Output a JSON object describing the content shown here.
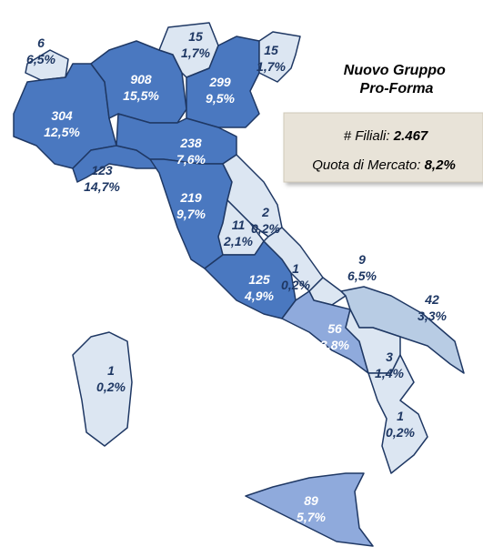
{
  "title": "Nuovo Gruppo Pro-Forma",
  "summary": {
    "branches_label": "# Filiali:",
    "branches_value": "2.467",
    "share_label": "Quota di Mercato:",
    "share_value": "8,2%"
  },
  "regions": [
    {
      "count": "6",
      "share": "6,5%"
    },
    {
      "count": "304",
      "share": "12,5%"
    },
    {
      "count": "908",
      "share": "15,5%"
    },
    {
      "count": "15",
      "share": "1,7%"
    },
    {
      "count": "299",
      "share": "9,5%"
    },
    {
      "count": "15",
      "share": "1,7%"
    },
    {
      "count": "123",
      "share": "14,7%"
    },
    {
      "count": "238",
      "share": "7,6%"
    },
    {
      "count": "219",
      "share": "9,7%"
    },
    {
      "count": "2",
      "share": "0,2%"
    },
    {
      "count": "11",
      "share": "2,1%"
    },
    {
      "count": "125",
      "share": "4,9%"
    },
    {
      "count": "1",
      "share": "0,2%"
    },
    {
      "count": "9",
      "share": "6,5%"
    },
    {
      "count": "56",
      "share": "3,8%"
    },
    {
      "count": "42",
      "share": "3,3%"
    },
    {
      "count": "3",
      "share": "1,4%"
    },
    {
      "count": "1",
      "share": "0,2%"
    },
    {
      "count": "89",
      "share": "5,7%"
    },
    {
      "count": "1",
      "share": "0,2%"
    }
  ]
}
